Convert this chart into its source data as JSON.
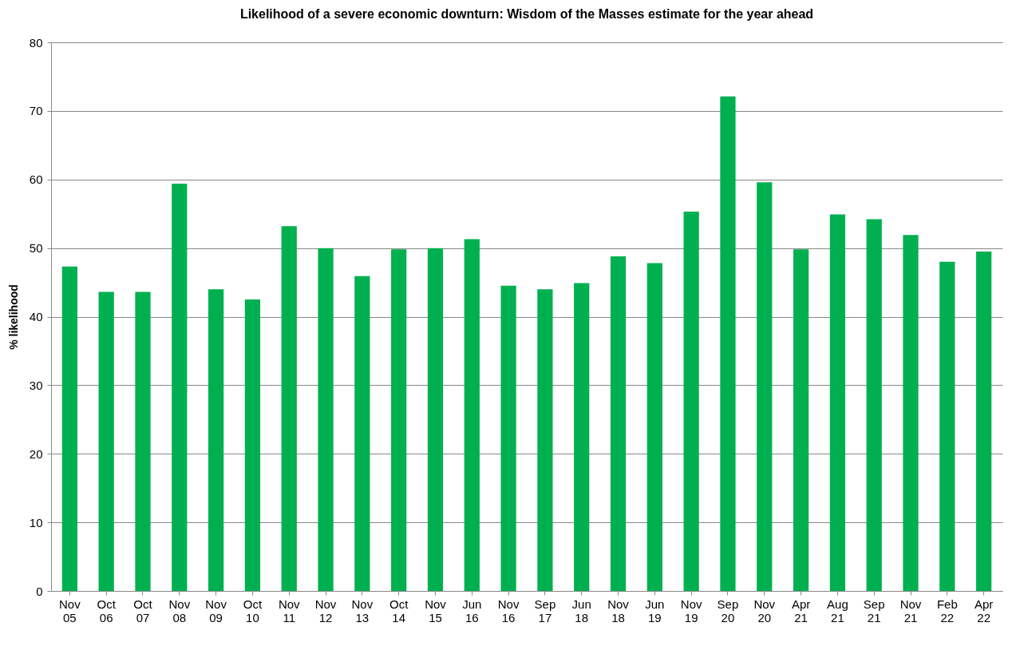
{
  "chart_data": {
    "type": "bar",
    "title": "Likelihood of a severe economic downturn:  Wisdom of the Masses estimate for the year ahead",
    "ylabel": "% likelihood",
    "categories": [
      "Nov 05",
      "Oct 06",
      "Oct 07",
      "Nov 08",
      "Nov 09",
      "Oct 10",
      "Nov 11",
      "Nov 12",
      "Nov 13",
      "Oct 14",
      "Nov 15",
      "Jun 16",
      "Nov 16",
      "Sep 17",
      "Jun 18",
      "Nov 18",
      "Jun 19",
      "Nov 19",
      "Sep 20",
      "Nov 20",
      "Apr 21",
      "Aug 21",
      "Sep 21",
      "Nov 21",
      "Feb 22",
      "Apr 22"
    ],
    "values": [
      47.3,
      43.6,
      43.6,
      59.4,
      44.0,
      42.5,
      53.2,
      50.0,
      45.9,
      49.8,
      50.0,
      51.3,
      44.5,
      44.0,
      44.9,
      48.8,
      47.8,
      55.3,
      72.1,
      59.6,
      49.8,
      54.9,
      54.2,
      51.9,
      48.0,
      49.5
    ],
    "color": "#00b050",
    "ylim": [
      0,
      80
    ],
    "yticks": [
      0,
      10,
      20,
      30,
      40,
      50,
      60,
      70,
      80
    ],
    "grid": "y"
  }
}
